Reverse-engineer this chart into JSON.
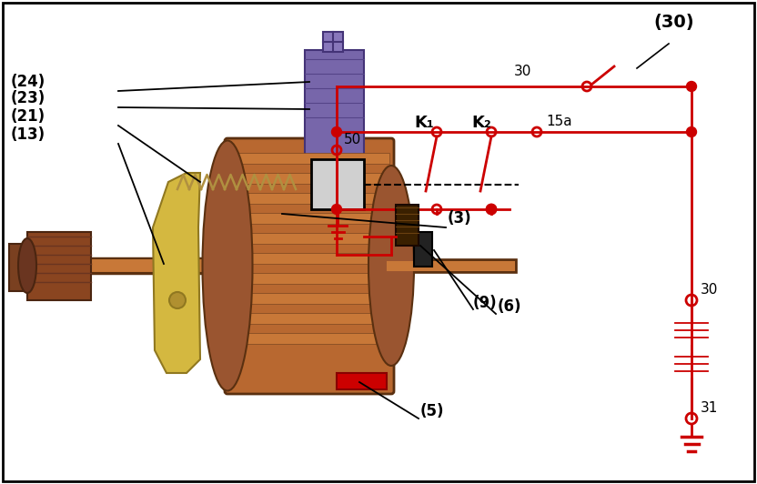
{
  "bg_color": "#ffffff",
  "border_color": "#000000",
  "red": "#cc0000",
  "fig_width": 8.32,
  "fig_height": 5.32,
  "labels": {
    "30_top": "(30)",
    "24": "(24)",
    "23": "(23)",
    "21": "(21)",
    "13": "(13)",
    "3": "(3)",
    "9": "(9)",
    "6": "(6)",
    "5": "(5)",
    "50": "50",
    "30_wire": "30",
    "15a": "15a",
    "K1": "K₁",
    "K2": "K₂",
    "30_terminal": "30",
    "31_terminal": "31"
  }
}
